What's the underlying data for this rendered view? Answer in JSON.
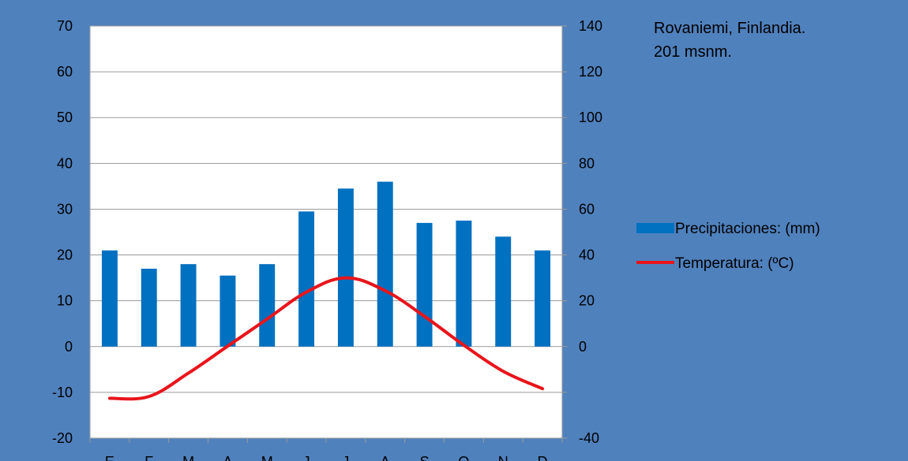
{
  "chart_data": {
    "type": "bar+line",
    "title_lines": [
      "Rovaniemi, Finlandia.",
      "201 msnm."
    ],
    "categories": [
      "E",
      "F",
      "M",
      "A",
      "M",
      "J",
      "J",
      "A",
      "S",
      "O",
      "N",
      "D"
    ],
    "series": [
      {
        "name": "Precipitaciones: (mm)",
        "kind": "bar",
        "axis": "right",
        "color": "#0070c0",
        "values": [
          42,
          34,
          36,
          31,
          36,
          59,
          69,
          72,
          54,
          55,
          48,
          42
        ]
      },
      {
        "name": "Temperatura:  (ºC)",
        "kind": "line",
        "axis": "left",
        "color": "#e8151b",
        "values": [
          -11.3,
          -10.9,
          -5.8,
          0.1,
          6.0,
          11.9,
          15.0,
          12.2,
          6.6,
          0.3,
          -5.4,
          -9.2
        ]
      }
    ],
    "y_left": {
      "min": -20,
      "max": 70,
      "step": 10,
      "ticks": [
        "-20",
        "-10",
        "0",
        "10",
        "20",
        "30",
        "40",
        "50",
        "60",
        "70"
      ]
    },
    "y_right": {
      "min": -40,
      "max": 140,
      "step": 20,
      "ticks": [
        "-40",
        "",
        "0",
        "20",
        "40",
        "60",
        "80",
        "100",
        "120",
        "140"
      ]
    },
    "grid": true,
    "legend_position": "right",
    "colors": {
      "background": "#4f81bd",
      "plot_area": "#ffffff",
      "gridline": "#9a9a9a"
    }
  }
}
